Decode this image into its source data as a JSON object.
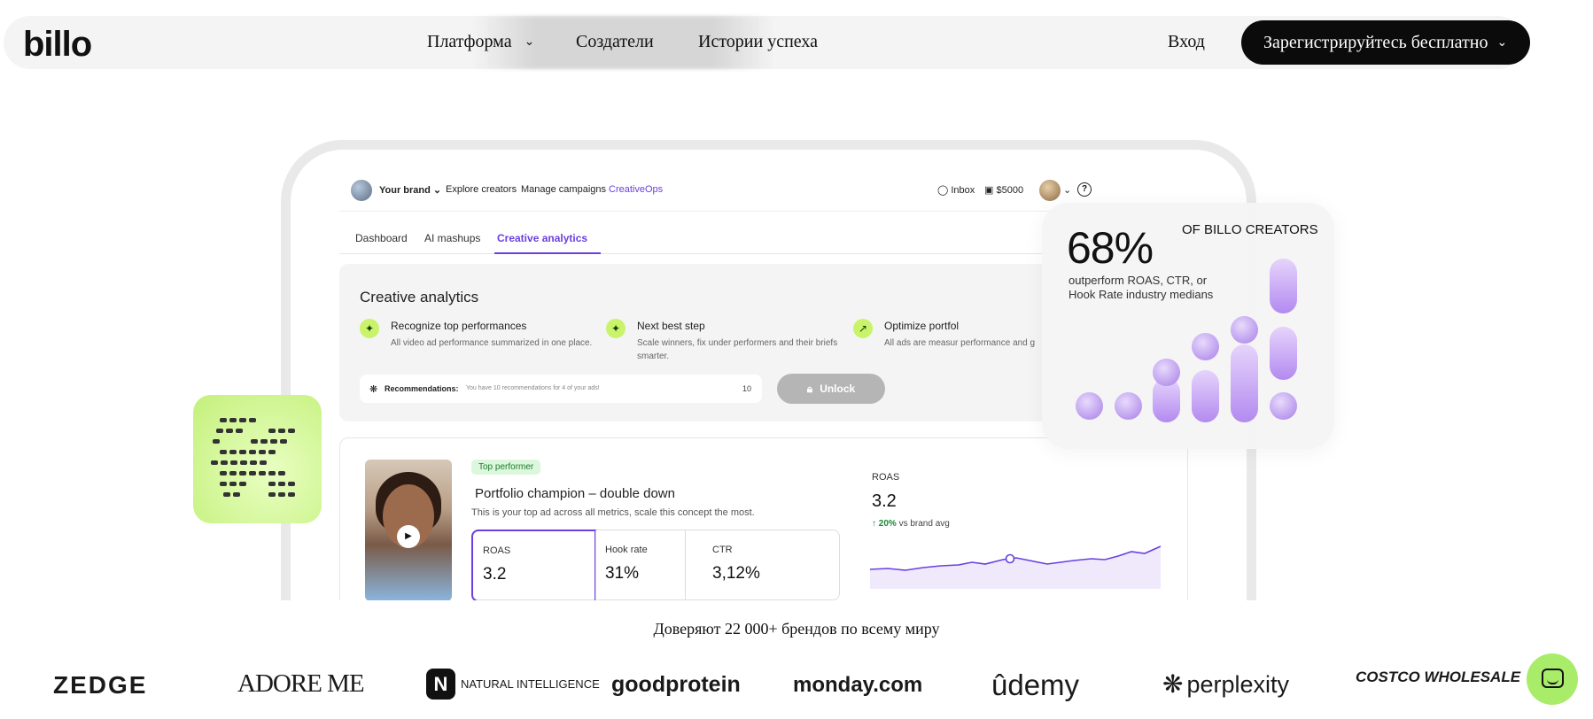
{
  "header": {
    "logo": "billo",
    "nav": [
      {
        "label": "Платформа",
        "has_dropdown": true
      },
      {
        "label": "Создатели"
      },
      {
        "label": "Истории успеха"
      }
    ],
    "login": "Вход",
    "signup": "Зарегистрируйтесь бесплатно"
  },
  "app": {
    "nav": {
      "brand": "Your brand",
      "explore": "Explore creators",
      "campaigns": "Manage campaigns",
      "creativeops": "CreativeOps",
      "inbox": "Inbox",
      "balance": "$5000"
    },
    "tabs": [
      "Dashboard",
      "AI mashups",
      "Creative analytics"
    ],
    "panel": {
      "title": "Creative analytics",
      "features": [
        {
          "title": "Recognize top performances",
          "desc": "All video ad performance summarized in one place."
        },
        {
          "title": "Next best step",
          "desc": "Scale winners, fix under performers and their briefs smarter."
        },
        {
          "title": "Optimize portfol",
          "desc": "All ads are measur performance and g"
        }
      ],
      "reco_label": "Recommendations:",
      "reco_text": "You have 10 recommendations for 4 of your ads!",
      "reco_count": "10",
      "unlock": "Unlock"
    },
    "card": {
      "badge": "Top performer",
      "title": "Portfolio champion – double down",
      "subtitle": "This is your top ad across all metrics, scale this concept the most.",
      "metrics": [
        {
          "label": "ROAS",
          "value": "3.2"
        },
        {
          "label": "Hook rate",
          "value": "31%"
        },
        {
          "label": "CTR",
          "value": "3,12%"
        }
      ],
      "roas_label": "ROAS",
      "roas_value": "3.2",
      "roas_delta": "20%",
      "roas_delta_text": "vs brand avg"
    }
  },
  "stat": {
    "value": "68%",
    "of": "OF BILLO CREATORS",
    "desc": "outperform ROAS, CTR, or Hook Rate industry medians"
  },
  "trust": {
    "text": "Доверяют 22 000+ брендов по всему миру",
    "brands": [
      "ZEDGE",
      "ADORE ME",
      "NATURAL INTELLIGENCE",
      "goodprotein",
      "monday.com",
      "ûdemy",
      "perplexity",
      "COSTCO WHOLESALE"
    ]
  }
}
